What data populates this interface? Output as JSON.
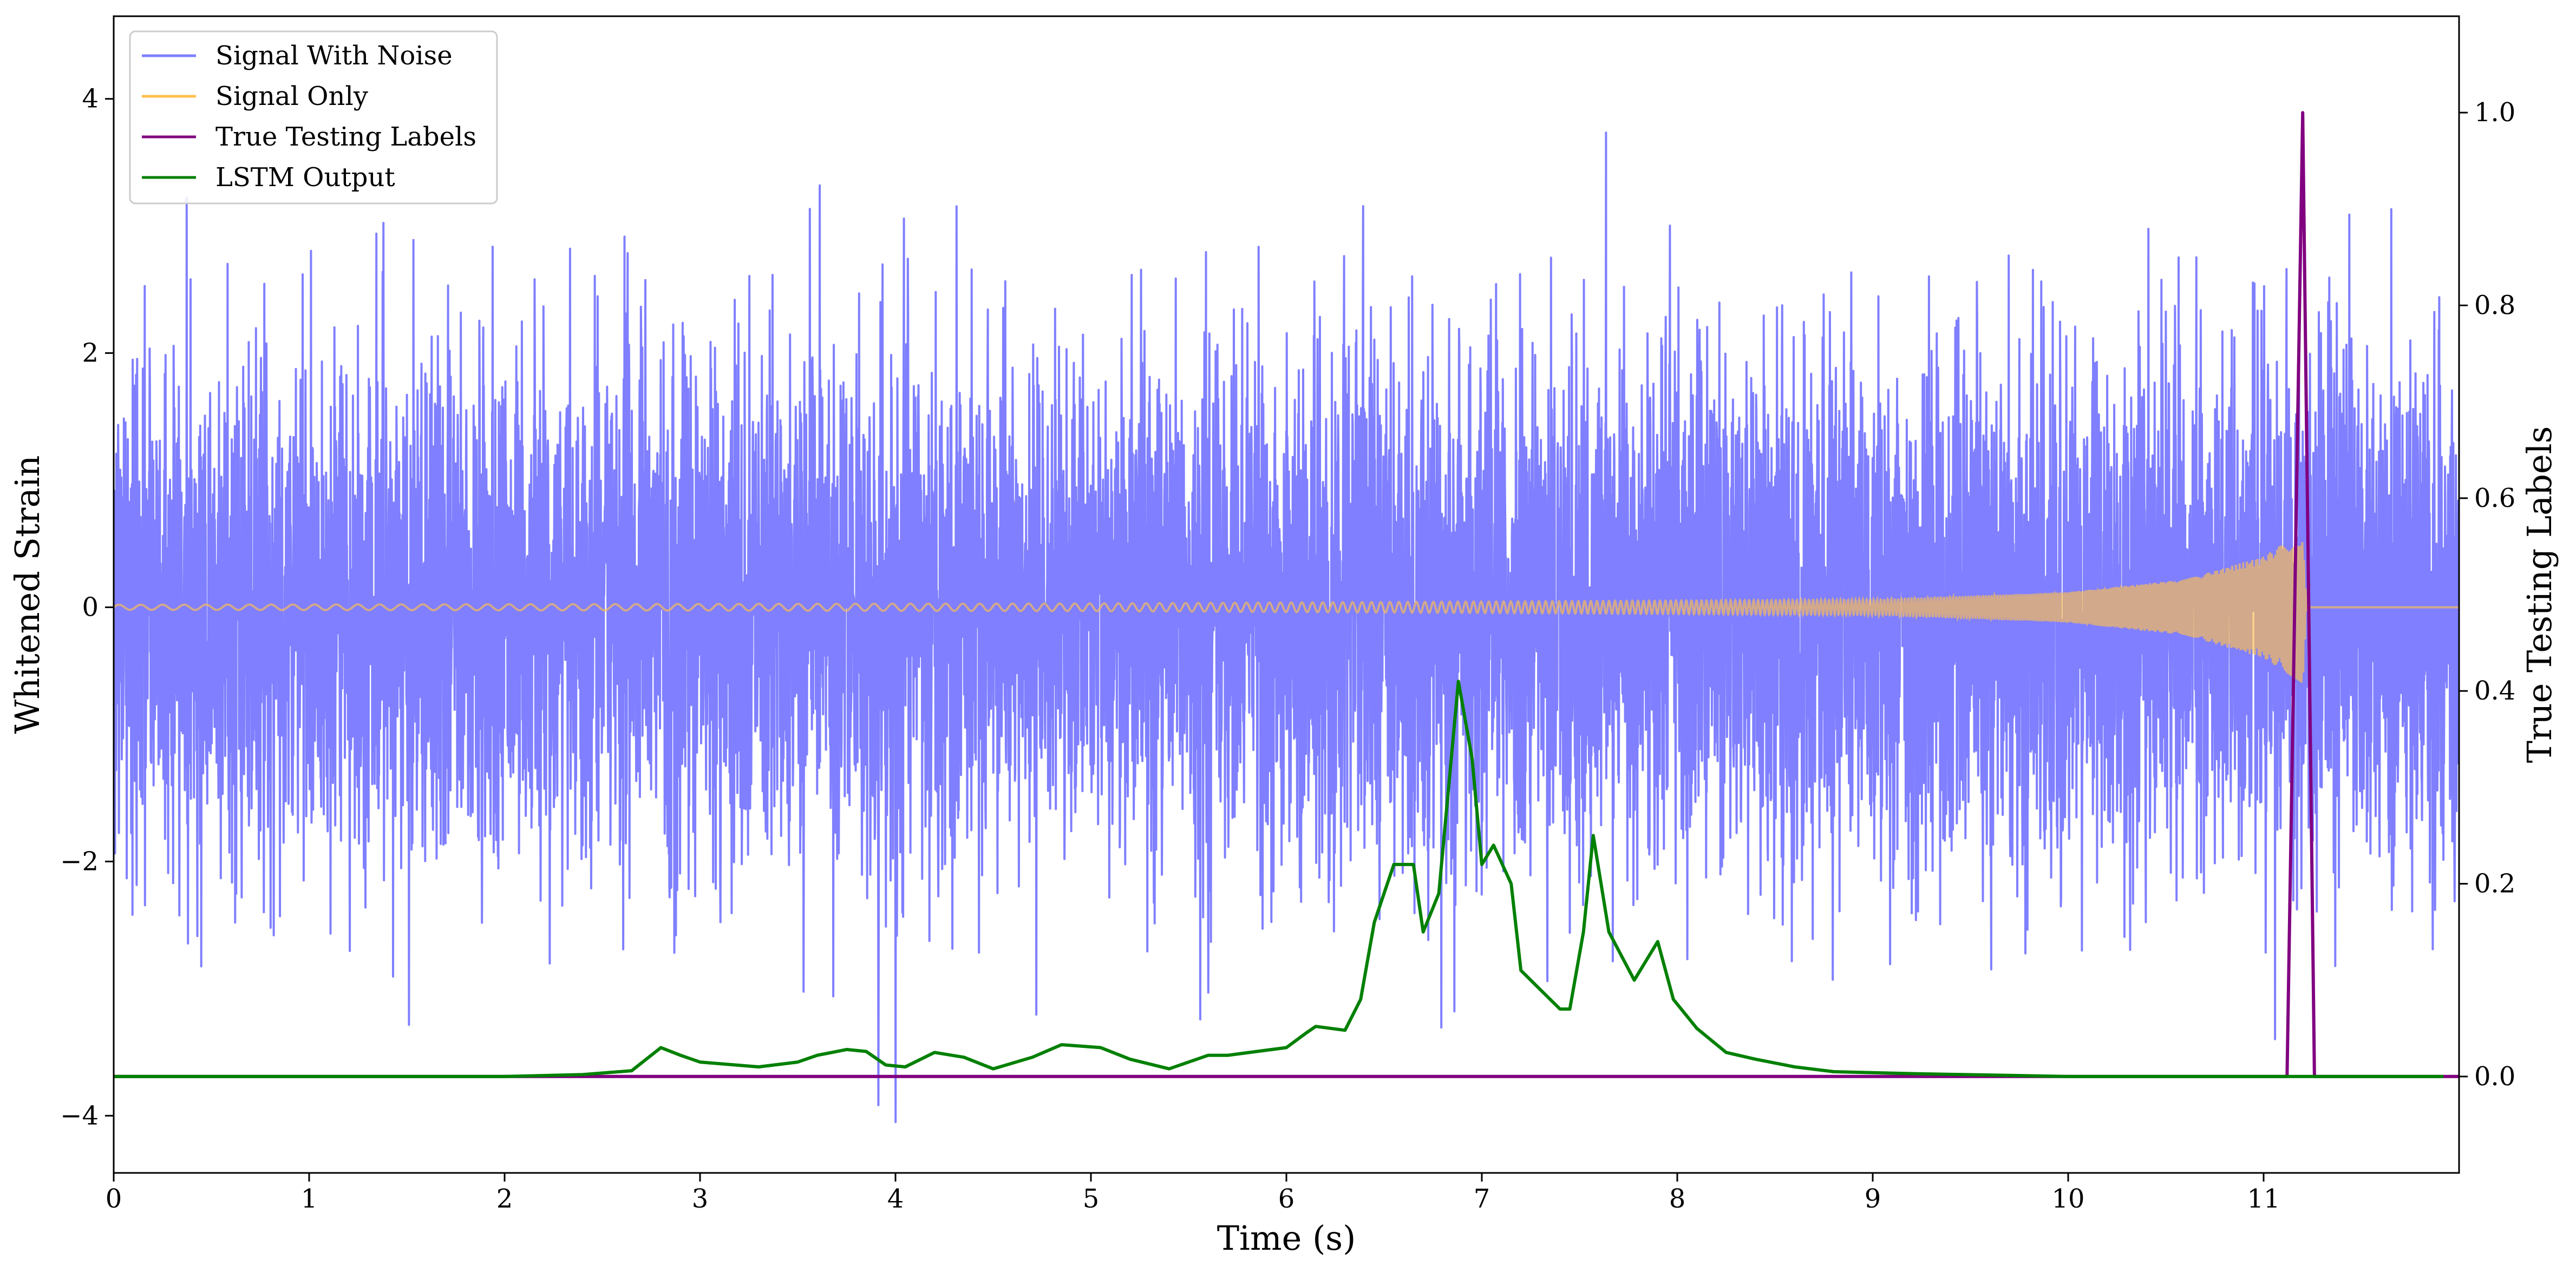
{
  "chart_data": {
    "type": "line",
    "xlabel": "Time (s)",
    "ylabel_left": "Whitened Strain",
    "ylabel_right": "True Testing Labels",
    "xlim": [
      0,
      12
    ],
    "ylim_left": [
      -4.45,
      4.65
    ],
    "ylim_right": [
      -0.1,
      1.1
    ],
    "x_ticks": [
      0,
      1,
      2,
      3,
      4,
      5,
      6,
      7,
      8,
      9,
      10,
      11
    ],
    "y_ticks_left": [
      -4,
      -2,
      0,
      2,
      4
    ],
    "y_ticks_right": [
      0.0,
      0.2,
      0.4,
      0.6,
      0.8,
      1.0
    ],
    "grid": false,
    "legend_position": "top-left",
    "legend": [
      "Signal With Noise",
      "Signal Only",
      "True Testing Labels",
      "LSTM Output"
    ],
    "colors": {
      "signal_with_noise": "#7f7fff",
      "signal_only": "#ffc04d",
      "true_labels": "#800080",
      "lstm_output": "#008000"
    },
    "series": [
      {
        "name": "Signal With Noise",
        "axis": "left",
        "description_stats": {
          "std": 1.0,
          "x_range": [
            0,
            12
          ]
        }
      },
      {
        "name": "Signal Only",
        "axis": "left",
        "envelope": {
          "x": [
            0,
            5,
            9,
            10,
            10.6,
            11.0,
            11.2,
            11.22
          ],
          "amplitude": [
            0.02,
            0.03,
            0.06,
            0.12,
            0.22,
            0.4,
            0.6,
            0.0
          ]
        }
      },
      {
        "name": "True Testing Labels",
        "axis": "right",
        "x": [
          0,
          11.12,
          11.2,
          11.26,
          12
        ],
        "y": [
          0,
          0,
          1.0,
          0,
          0
        ]
      },
      {
        "name": "LSTM Output",
        "axis": "right",
        "x": [
          0,
          1.5,
          2.0,
          2.4,
          2.65,
          2.8,
          2.9,
          3.0,
          3.3,
          3.5,
          3.6,
          3.75,
          3.85,
          3.95,
          4.05,
          4.2,
          4.35,
          4.5,
          4.7,
          4.85,
          5.05,
          5.2,
          5.4,
          5.6,
          5.7,
          6.0,
          6.1,
          6.15,
          6.3,
          6.38,
          6.45,
          6.55,
          6.65,
          6.7,
          6.78,
          6.88,
          6.95,
          7.0,
          7.06,
          7.15,
          7.2,
          7.3,
          7.4,
          7.45,
          7.52,
          7.57,
          7.65,
          7.78,
          7.9,
          7.98,
          8.1,
          8.25,
          8.4,
          8.6,
          8.8,
          9.2,
          10.0,
          11.92
        ],
        "y": [
          0.0,
          0.0,
          0.0,
          0.002,
          0.006,
          0.03,
          0.022,
          0.015,
          0.01,
          0.015,
          0.022,
          0.028,
          0.026,
          0.012,
          0.01,
          0.025,
          0.02,
          0.008,
          0.02,
          0.033,
          0.03,
          0.018,
          0.008,
          0.022,
          0.022,
          0.03,
          0.045,
          0.052,
          0.048,
          0.08,
          0.16,
          0.22,
          0.22,
          0.15,
          0.19,
          0.41,
          0.33,
          0.22,
          0.24,
          0.2,
          0.11,
          0.09,
          0.07,
          0.07,
          0.15,
          0.25,
          0.15,
          0.1,
          0.14,
          0.08,
          0.05,
          0.025,
          0.018,
          0.01,
          0.005,
          0.003,
          0.0,
          0.0
        ]
      }
    ]
  }
}
